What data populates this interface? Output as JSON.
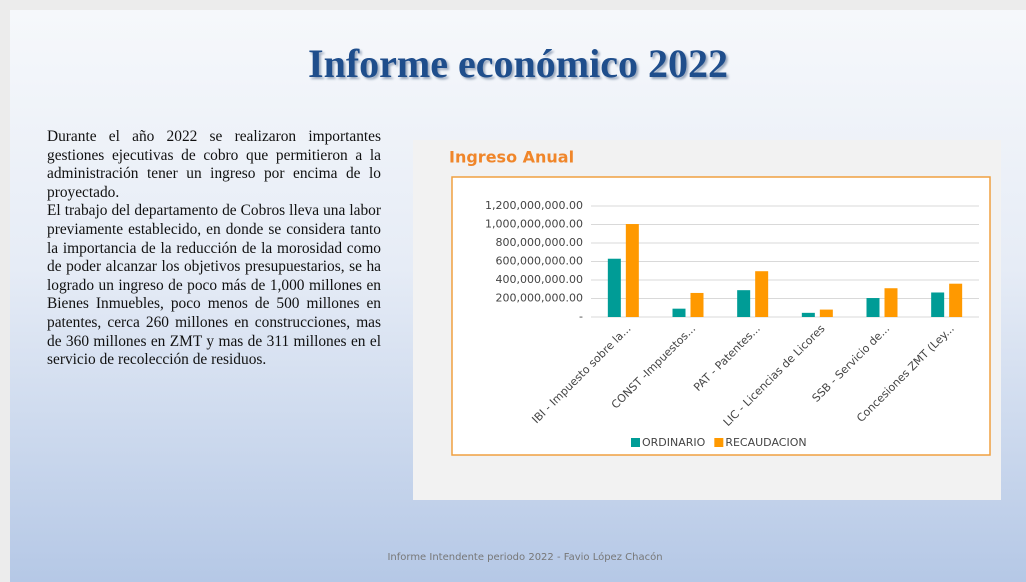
{
  "slide": {
    "title": "Informe económico 2022",
    "paragraphs": [
      "Durante el año 2022 se realizaron importantes gestiones ejecutivas de cobro que permitieron a la administración tener un ingreso por encima de lo proyectado.",
      "El trabajo del departamento de Cobros lleva una labor previamente establecido, en donde se considera tanto la importancia de la reducción de la morosidad como de poder alcanzar los objetivos presupuestarios, se ha logrado un ingreso de poco más de 1,000 millones en Bienes Inmuebles, poco menos de 500 millones en patentes, cerca 260 millones en construcciones, mas de 360 millones en ZMT y mas de 311 millones en el servicio de recolección de residuos."
    ],
    "footer": "Informe Intendente periodo 2022 - Favio López Chacón"
  },
  "chart_data": {
    "type": "bar",
    "title": "Ingreso Anual",
    "categories": [
      "IBI - Impuesto sobre la...",
      "CONST -Impuestos...",
      "PAT - Patentes...",
      "LIC - Licencias de Licores",
      "SSB - Servicio de...",
      "Concesiones  ZMT (Ley..."
    ],
    "series": [
      {
        "name": "ORDINARIO",
        "color": "#009c96",
        "values": [
          630000000,
          90000000,
          290000000,
          45000000,
          205000000,
          265000000
        ]
      },
      {
        "name": "RECAUDACION",
        "color": "#ff9900",
        "values": [
          1005000000,
          260000000,
          495000000,
          80000000,
          311000000,
          360000000
        ]
      }
    ],
    "ylim": [
      0,
      1200000000
    ],
    "yticks": [
      {
        "value": 0,
        "label": "-"
      },
      {
        "value": 200000000,
        "label": "200,000,000.00"
      },
      {
        "value": 400000000,
        "label": "400,000,000.00"
      },
      {
        "value": 600000000,
        "label": "600,000,000.00"
      },
      {
        "value": 800000000,
        "label": "800,000,000.00"
      },
      {
        "value": 1000000000,
        "label": "1,000,000,000.00"
      },
      {
        "value": 1200000000,
        "label": "1,200,000,000.00"
      }
    ],
    "grid": true,
    "legend": "bottom"
  }
}
